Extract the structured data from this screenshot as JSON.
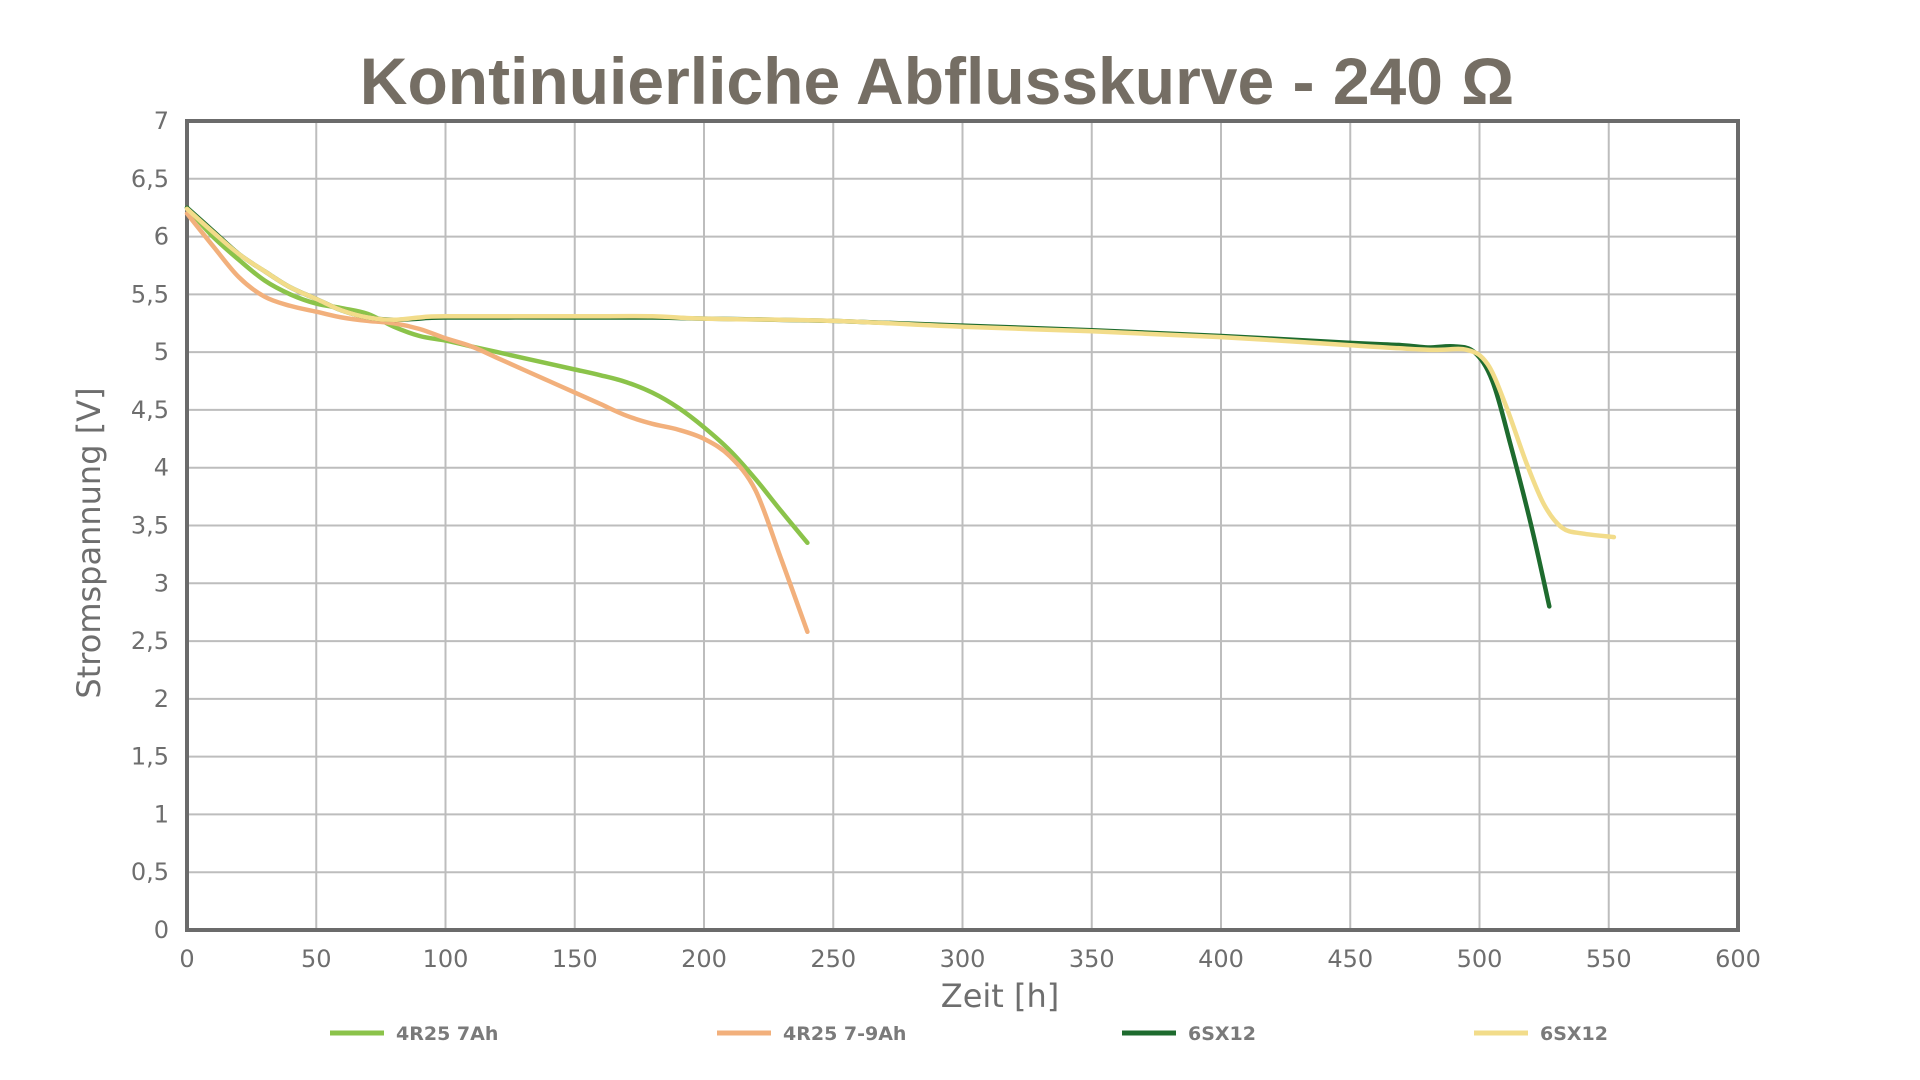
{
  "chart_data": {
    "type": "line",
    "title": "Kontinuierliche Abflusskurve - 240 Ω",
    "xlabel": "Zeit [h]",
    "ylabel": "Stromspannung [V]",
    "xlim": [
      0,
      600
    ],
    "ylim": [
      0,
      7
    ],
    "grid": true,
    "legend_position": "bottom",
    "x_ticks": [
      {
        "value": 0,
        "label": "0"
      },
      {
        "value": 50,
        "label": "50"
      },
      {
        "value": 100,
        "label": "100"
      },
      {
        "value": 150,
        "label": "150"
      },
      {
        "value": 200,
        "label": "200"
      },
      {
        "value": 250,
        "label": "250"
      },
      {
        "value": 300,
        "label": "300"
      },
      {
        "value": 350,
        "label": "350"
      },
      {
        "value": 400,
        "label": "400"
      },
      {
        "value": 450,
        "label": "450"
      },
      {
        "value": 500,
        "label": "500"
      },
      {
        "value": 550,
        "label": "550"
      },
      {
        "value": 600,
        "label": "600"
      }
    ],
    "y_ticks": [
      {
        "value": 0,
        "label": "0"
      },
      {
        "value": 0.5,
        "label": "0,5"
      },
      {
        "value": 1,
        "label": "1"
      },
      {
        "value": 1.5,
        "label": "1,5"
      },
      {
        "value": 2,
        "label": "2"
      },
      {
        "value": 2.5,
        "label": "2,5"
      },
      {
        "value": 3,
        "label": "3"
      },
      {
        "value": 3.5,
        "label": "3,5"
      },
      {
        "value": 4,
        "label": "4"
      },
      {
        "value": 4.5,
        "label": "4,5"
      },
      {
        "value": 5,
        "label": "5"
      },
      {
        "value": 5.5,
        "label": "5,5"
      },
      {
        "value": 6,
        "label": "6"
      },
      {
        "value": 6.5,
        "label": "6,5"
      },
      {
        "value": 7,
        "label": "7"
      }
    ],
    "series": [
      {
        "name": "4R25 7Ah",
        "color": "#8bc34a",
        "points": [
          [
            0,
            6.25
          ],
          [
            10,
            6.0
          ],
          [
            20,
            5.8
          ],
          [
            30,
            5.62
          ],
          [
            40,
            5.5
          ],
          [
            50,
            5.42
          ],
          [
            60,
            5.38
          ],
          [
            70,
            5.33
          ],
          [
            80,
            5.22
          ],
          [
            90,
            5.14
          ],
          [
            100,
            5.1
          ],
          [
            110,
            5.05
          ],
          [
            120,
            5.0
          ],
          [
            130,
            4.95
          ],
          [
            140,
            4.9
          ],
          [
            150,
            4.85
          ],
          [
            160,
            4.8
          ],
          [
            170,
            4.74
          ],
          [
            180,
            4.65
          ],
          [
            190,
            4.52
          ],
          [
            200,
            4.35
          ],
          [
            210,
            4.15
          ],
          [
            220,
            3.9
          ],
          [
            230,
            3.62
          ],
          [
            240,
            3.35
          ]
        ]
      },
      {
        "name": "4R25 7-9Ah",
        "color": "#f2b07c",
        "points": [
          [
            0,
            6.2
          ],
          [
            10,
            5.92
          ],
          [
            20,
            5.65
          ],
          [
            30,
            5.48
          ],
          [
            40,
            5.4
          ],
          [
            50,
            5.35
          ],
          [
            60,
            5.3
          ],
          [
            70,
            5.27
          ],
          [
            80,
            5.25
          ],
          [
            90,
            5.2
          ],
          [
            100,
            5.12
          ],
          [
            110,
            5.05
          ],
          [
            120,
            4.95
          ],
          [
            130,
            4.85
          ],
          [
            140,
            4.75
          ],
          [
            150,
            4.65
          ],
          [
            160,
            4.55
          ],
          [
            170,
            4.45
          ],
          [
            180,
            4.38
          ],
          [
            190,
            4.33
          ],
          [
            200,
            4.25
          ],
          [
            210,
            4.1
          ],
          [
            220,
            3.8
          ],
          [
            230,
            3.2
          ],
          [
            240,
            2.58
          ]
        ]
      },
      {
        "name": "6SX12",
        "color": "#1e6b2e",
        "points": [
          [
            0,
            6.25
          ],
          [
            10,
            6.05
          ],
          [
            20,
            5.85
          ],
          [
            30,
            5.7
          ],
          [
            40,
            5.56
          ],
          [
            50,
            5.46
          ],
          [
            60,
            5.36
          ],
          [
            70,
            5.3
          ],
          [
            80,
            5.28
          ],
          [
            90,
            5.29
          ],
          [
            100,
            5.3
          ],
          [
            150,
            5.3
          ],
          [
            180,
            5.3
          ],
          [
            200,
            5.29
          ],
          [
            250,
            5.27
          ],
          [
            300,
            5.23
          ],
          [
            350,
            5.19
          ],
          [
            400,
            5.14
          ],
          [
            450,
            5.08
          ],
          [
            470,
            5.06
          ],
          [
            480,
            5.04
          ],
          [
            490,
            5.05
          ],
          [
            498,
            5.0
          ],
          [
            505,
            4.75
          ],
          [
            512,
            4.2
          ],
          [
            520,
            3.5
          ],
          [
            527,
            2.8
          ]
        ]
      },
      {
        "name": "6SX12",
        "color": "#f2dc8a",
        "points": [
          [
            0,
            6.24
          ],
          [
            10,
            6.04
          ],
          [
            20,
            5.85
          ],
          [
            30,
            5.7
          ],
          [
            40,
            5.56
          ],
          [
            50,
            5.46
          ],
          [
            60,
            5.36
          ],
          [
            70,
            5.3
          ],
          [
            80,
            5.28
          ],
          [
            90,
            5.3
          ],
          [
            100,
            5.31
          ],
          [
            150,
            5.31
          ],
          [
            180,
            5.31
          ],
          [
            200,
            5.29
          ],
          [
            250,
            5.27
          ],
          [
            300,
            5.22
          ],
          [
            350,
            5.18
          ],
          [
            400,
            5.13
          ],
          [
            450,
            5.06
          ],
          [
            480,
            5.02
          ],
          [
            495,
            5.02
          ],
          [
            503,
            4.9
          ],
          [
            510,
            4.55
          ],
          [
            518,
            4.05
          ],
          [
            525,
            3.68
          ],
          [
            532,
            3.48
          ],
          [
            540,
            3.43
          ],
          [
            552,
            3.4
          ]
        ]
      }
    ]
  }
}
